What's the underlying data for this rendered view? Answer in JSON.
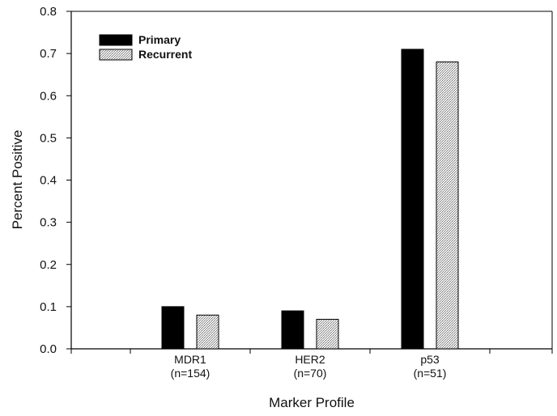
{
  "chart_data": {
    "type": "bar",
    "categories": [
      {
        "name": "MDR1",
        "n": "(n=154)"
      },
      {
        "name": "HER2",
        "n": "(n=70)"
      },
      {
        "name": "p53",
        "n": "(n=51)"
      }
    ],
    "series": [
      {
        "name": "Primary",
        "values": [
          0.1,
          0.09,
          0.71
        ],
        "color": "#000000",
        "pattern": "solid"
      },
      {
        "name": "Recurrent",
        "values": [
          0.08,
          0.07,
          0.68
        ],
        "color": "#cccccc",
        "pattern": "stipple"
      }
    ],
    "ylabel": "Percent Positive",
    "xlabel": "Marker Profile",
    "ylim": [
      0.0,
      0.8
    ],
    "yticks": [
      "0.0",
      "0.1",
      "0.2",
      "0.3",
      "0.4",
      "0.5",
      "0.6",
      "0.7",
      "0.8"
    ],
    "legend_position": "top-left",
    "grid": false
  }
}
